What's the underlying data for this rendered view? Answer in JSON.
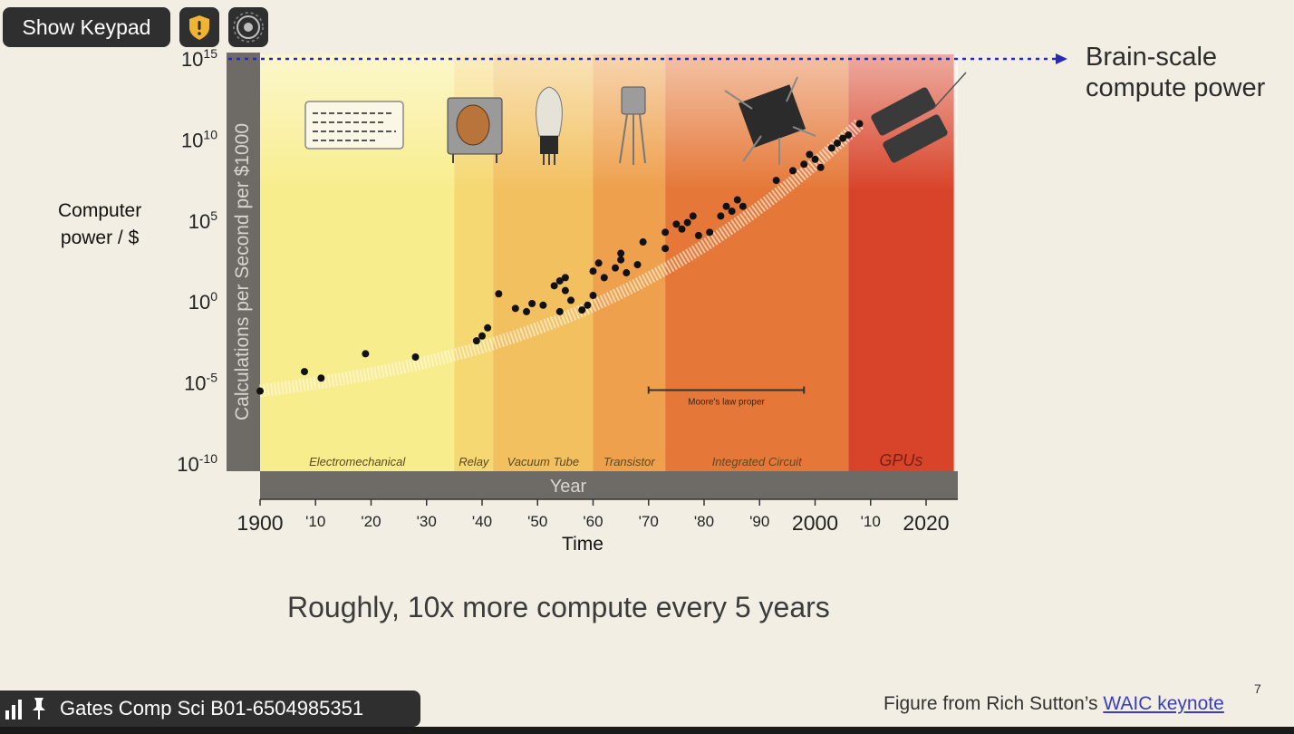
{
  "toolbar": {
    "show_keypad_label": "Show Keypad",
    "shield_icon": "shield-alert-icon",
    "record_icon": "record-icon"
  },
  "meeting": {
    "name": "Gates Comp Sci B01-6504985351",
    "signal_icon": "signal-bars-icon",
    "pin_icon": "pin-icon"
  },
  "slide": {
    "brain_label": "Brain-scale\ncompute power",
    "caption": "Roughly, 10x more compute every 5 years",
    "credit_prefix": "Figure from Rich Sutton’s ",
    "credit_link": "WAIC keynote",
    "page_number": "7",
    "computer_power_label": "Computer\npower / $"
  },
  "chart_data": {
    "type": "scatter",
    "ylabel": "Calculations per Second per $1000",
    "band_label": "Year",
    "xlabel": "Time",
    "y_scale": "log",
    "ylim_exp": [
      -10,
      15
    ],
    "xlim": [
      1900,
      2023
    ],
    "y_ticks": [
      {
        "base": "10",
        "exp": "15",
        "value_exp": 15
      },
      {
        "base": "10",
        "exp": "10",
        "value_exp": 10
      },
      {
        "base": "10",
        "exp": "5",
        "value_exp": 5
      },
      {
        "base": "10",
        "exp": "0",
        "value_exp": 0
      },
      {
        "base": "10",
        "exp": "-5",
        "value_exp": -5
      },
      {
        "base": "10",
        "exp": "-10",
        "value_exp": -10
      }
    ],
    "x_ticks": [
      {
        "label": "1900",
        "year": 1900,
        "big": true
      },
      {
        "label": "'10",
        "year": 1910,
        "big": false
      },
      {
        "label": "'20",
        "year": 1920,
        "big": false
      },
      {
        "label": "'30",
        "year": 1930,
        "big": false
      },
      {
        "label": "'40",
        "year": 1940,
        "big": false
      },
      {
        "label": "'50",
        "year": 1950,
        "big": false
      },
      {
        "label": "'60",
        "year": 1960,
        "big": false
      },
      {
        "label": "'70",
        "year": 1970,
        "big": false
      },
      {
        "label": "'80",
        "year": 1980,
        "big": false
      },
      {
        "label": "'90",
        "year": 1990,
        "big": false
      },
      {
        "label": "2000",
        "year": 2000,
        "big": true
      },
      {
        "label": "'10",
        "year": 2010,
        "big": false
      },
      {
        "label": "2020",
        "year": 2020,
        "big": true
      }
    ],
    "eras": [
      {
        "name": "Electromechanical",
        "start": 1900,
        "end": 1935,
        "color": "#f8ed8c"
      },
      {
        "name": "Relay",
        "start": 1935,
        "end": 1942,
        "color": "#f5d872"
      },
      {
        "name": "Vacuum Tube",
        "start": 1942,
        "end": 1960,
        "color": "#f2c05f"
      },
      {
        "name": "Transistor",
        "start": 1960,
        "end": 1973,
        "color": "#eea04c"
      },
      {
        "name": "Integrated Circuit",
        "start": 1973,
        "end": 2006,
        "color": "#e57838"
      },
      {
        "name": "GPUs",
        "start": 2006,
        "end": 2025,
        "color": "#d8442a"
      }
    ],
    "moores_law_label": "Moore's law proper",
    "moores_law_range": [
      1970,
      1998
    ],
    "moores_law_level_exp": -6,
    "brain_level_exp": 15,
    "points": [
      [
        1900,
        -5.5
      ],
      [
        1908,
        -4.3
      ],
      [
        1911,
        -4.7
      ],
      [
        1919,
        -3.2
      ],
      [
        1928,
        -3.4
      ],
      [
        1939,
        -2.4
      ],
      [
        1940,
        -2.1
      ],
      [
        1941,
        -1.6
      ],
      [
        1943,
        0.5
      ],
      [
        1946,
        -0.4
      ],
      [
        1948,
        -0.6
      ],
      [
        1949,
        -0.1
      ],
      [
        1951,
        -0.2
      ],
      [
        1953,
        1.0
      ],
      [
        1954,
        1.3
      ],
      [
        1954,
        -0.6
      ],
      [
        1955,
        0.7
      ],
      [
        1955,
        1.5
      ],
      [
        1956,
        0.1
      ],
      [
        1958,
        -0.5
      ],
      [
        1959,
        -0.2
      ],
      [
        1960,
        0.4
      ],
      [
        1960,
        1.9
      ],
      [
        1961,
        2.4
      ],
      [
        1962,
        1.5
      ],
      [
        1964,
        2.1
      ],
      [
        1965,
        3.0
      ],
      [
        1965,
        2.6
      ],
      [
        1966,
        1.8
      ],
      [
        1968,
        2.3
      ],
      [
        1969,
        3.7
      ],
      [
        1973,
        3.3
      ],
      [
        1973,
        4.3
      ],
      [
        1975,
        4.8
      ],
      [
        1976,
        4.5
      ],
      [
        1977,
        4.9
      ],
      [
        1978,
        5.3
      ],
      [
        1979,
        4.1
      ],
      [
        1981,
        4.3
      ],
      [
        1983,
        5.3
      ],
      [
        1984,
        5.9
      ],
      [
        1985,
        5.6
      ],
      [
        1986,
        6.3
      ],
      [
        1987,
        5.9
      ],
      [
        1993,
        7.5
      ],
      [
        1996,
        8.1
      ],
      [
        1998,
        8.5
      ],
      [
        1999,
        9.1
      ],
      [
        2000,
        8.8
      ],
      [
        2001,
        8.3
      ],
      [
        2003,
        9.5
      ],
      [
        2004,
        9.8
      ],
      [
        2005,
        10.1
      ],
      [
        2006,
        10.3
      ],
      [
        2008,
        11.0
      ]
    ]
  }
}
